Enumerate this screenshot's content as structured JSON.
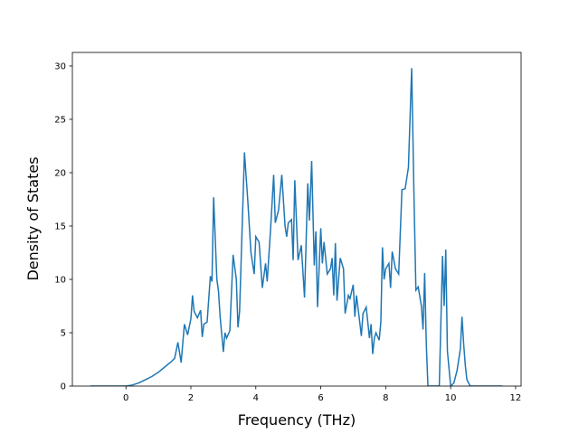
{
  "chart_data": {
    "type": "line",
    "x_label": "Frequency (THz)",
    "y_label": "Density of States",
    "x": [
      -1.1,
      -0.5,
      0,
      0.2,
      0.4,
      0.6,
      0.8,
      1.0,
      1.2,
      1.4,
      1.5,
      1.6,
      1.7,
      1.8,
      1.9,
      2.0,
      2.05,
      2.1,
      2.2,
      2.3,
      2.35,
      2.4,
      2.5,
      2.6,
      2.65,
      2.7,
      2.8,
      2.85,
      2.9,
      3.0,
      3.05,
      3.1,
      3.2,
      3.3,
      3.4,
      3.45,
      3.5,
      3.55,
      3.65,
      3.75,
      3.85,
      3.95,
      4.0,
      4.1,
      4.2,
      4.3,
      4.35,
      4.45,
      4.55,
      4.6,
      4.7,
      4.8,
      4.9,
      4.95,
      5.0,
      5.1,
      5.15,
      5.2,
      5.3,
      5.4,
      5.5,
      5.6,
      5.65,
      5.72,
      5.8,
      5.85,
      5.9,
      6.0,
      6.05,
      6.1,
      6.2,
      6.3,
      6.35,
      6.4,
      6.45,
      6.5,
      6.6,
      6.7,
      6.75,
      6.85,
      6.9,
      7.0,
      7.05,
      7.1,
      7.2,
      7.25,
      7.3,
      7.4,
      7.5,
      7.55,
      7.6,
      7.65,
      7.7,
      7.8,
      7.85,
      7.9,
      7.95,
      8.0,
      8.1,
      8.15,
      8.2,
      8.3,
      8.4,
      8.5,
      8.6,
      8.7,
      8.8,
      8.87,
      8.93,
      9.0,
      9.1,
      9.15,
      9.2,
      9.25,
      9.3,
      9.65,
      9.75,
      9.8,
      9.85,
      9.9,
      10.0,
      10.1,
      10.2,
      10.3,
      10.35,
      10.4,
      10.45,
      10.5,
      10.6,
      11.0,
      11.6
    ],
    "series": [
      {
        "color": "#1f77b4",
        "values": [
          0,
          0,
          0,
          0.1,
          0.3,
          0.6,
          0.9,
          1.3,
          1.8,
          2.3,
          2.6,
          4.1,
          2.2,
          5.8,
          4.8,
          6.3,
          8.5,
          7.0,
          6.4,
          7.1,
          4.6,
          5.8,
          6.0,
          10.3,
          9.8,
          17.7,
          10.0,
          8.9,
          6.5,
          3.2,
          5.0,
          4.5,
          5.2,
          12.3,
          10.0,
          5.5,
          7.0,
          12.0,
          21.9,
          17.5,
          12.5,
          10.5,
          14.0,
          13.5,
          9.2,
          11.5,
          9.8,
          14.5,
          19.8,
          15.3,
          16.5,
          19.8,
          15.0,
          14.0,
          15.3,
          15.6,
          11.8,
          19.3,
          11.8,
          13.2,
          8.3,
          19.0,
          15.5,
          21.1,
          11.3,
          14.5,
          7.4,
          14.8,
          11.5,
          13.5,
          10.5,
          11.0,
          12.0,
          8.5,
          13.4,
          8.0,
          12.0,
          11.0,
          6.8,
          8.5,
          8.2,
          9.5,
          6.5,
          8.5,
          6.0,
          4.7,
          6.8,
          7.4,
          4.5,
          5.8,
          3.0,
          4.5,
          5.0,
          4.3,
          6.0,
          13.0,
          10.0,
          11.0,
          11.5,
          9.2,
          12.6,
          11.0,
          10.5,
          18.4,
          18.5,
          20.5,
          29.8,
          18.0,
          9.0,
          9.3,
          7.5,
          5.3,
          10.6,
          4.0,
          0,
          0,
          12.2,
          7.5,
          12.8,
          3.3,
          0,
          0.3,
          1.5,
          3.5,
          6.5,
          4.0,
          2.0,
          0.6,
          0,
          0,
          0
        ]
      }
    ],
    "xlim": [
      -1.65,
      12.17
    ],
    "ylim": [
      0,
      31.27
    ],
    "xticks": [
      0,
      2,
      4,
      6,
      8,
      10,
      12
    ],
    "yticks": [
      0,
      5,
      10,
      15,
      20,
      25,
      30
    ]
  }
}
